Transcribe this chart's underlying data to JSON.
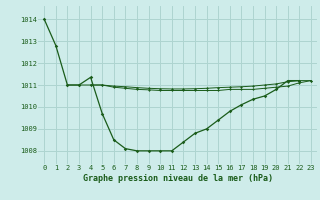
{
  "xlabel": "Graphe pression niveau de la mer (hPa)",
  "xlim": [
    -0.5,
    23.5
  ],
  "ylim": [
    1007.4,
    1014.6
  ],
  "yticks": [
    1008,
    1009,
    1010,
    1011,
    1012,
    1013,
    1014
  ],
  "xticks": [
    0,
    1,
    2,
    3,
    4,
    5,
    6,
    7,
    8,
    9,
    10,
    11,
    12,
    13,
    14,
    15,
    16,
    17,
    18,
    19,
    20,
    21,
    22,
    23
  ],
  "background_color": "#ceecea",
  "grid_color": "#aed4d0",
  "line_color": "#1a5c1a",
  "s1x": [
    0,
    1,
    2,
    3,
    4,
    5,
    6,
    7,
    8,
    9,
    10,
    11,
    12,
    13,
    14,
    15,
    16,
    17,
    18,
    19,
    20,
    21,
    22
  ],
  "s1y": [
    1014.0,
    1012.8,
    1011.0,
    1011.0,
    1011.35,
    1009.7,
    1008.5,
    1008.1,
    1008.0,
    1008.0,
    1008.0,
    1008.0,
    1008.4,
    1008.8,
    1009.0,
    1009.4,
    1009.8,
    1010.1,
    1010.35,
    1010.5,
    1010.8,
    1011.2,
    1011.2
  ],
  "s2x": [
    2,
    3,
    4,
    5,
    6,
    7,
    8,
    9,
    10,
    11,
    12,
    13,
    14,
    15,
    16,
    17,
    18,
    19,
    20,
    21,
    22,
    23
  ],
  "s2y": [
    1011.0,
    1011.0,
    1011.0,
    1011.0,
    1010.9,
    1010.85,
    1010.8,
    1010.78,
    1010.75,
    1010.75,
    1010.75,
    1010.75,
    1010.75,
    1010.75,
    1010.8,
    1010.8,
    1010.8,
    1010.85,
    1010.9,
    1010.95,
    1011.1,
    1011.2
  ],
  "s3x": [
    4,
    5,
    6,
    7,
    8,
    9,
    10,
    11,
    12,
    13,
    14,
    15,
    16,
    17,
    18,
    19,
    20,
    21,
    22,
    23
  ],
  "s3y": [
    1011.0,
    1011.0,
    1010.95,
    1010.92,
    1010.88,
    1010.85,
    1010.83,
    1010.82,
    1010.82,
    1010.83,
    1010.85,
    1010.88,
    1010.9,
    1010.92,
    1010.95,
    1011.0,
    1011.05,
    1011.15,
    1011.2,
    1011.2
  ],
  "tick_fontsize": 5.0,
  "label_fontsize": 6.0
}
